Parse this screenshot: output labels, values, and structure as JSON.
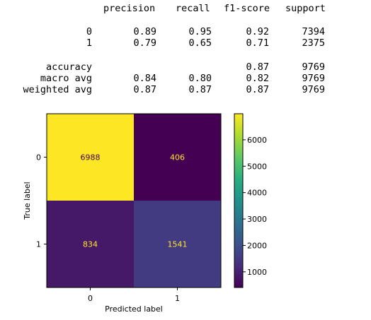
{
  "report": {
    "headers": [
      "precision",
      "recall",
      "f1-score",
      "support"
    ],
    "rows": [
      {
        "label": "0",
        "precision": "0.89",
        "recall": "0.95",
        "f1": "0.92",
        "support": "7394"
      },
      {
        "label": "1",
        "precision": "0.79",
        "recall": "0.65",
        "f1": "0.71",
        "support": "2375"
      },
      {
        "label": "accuracy",
        "precision": "",
        "recall": "",
        "f1": "0.87",
        "support": "9769"
      },
      {
        "label": "macro avg",
        "precision": "0.84",
        "recall": "0.80",
        "f1": "0.82",
        "support": "9769"
      },
      {
        "label": "weighted avg",
        "precision": "0.87",
        "recall": "0.87",
        "f1": "0.87",
        "support": "9769"
      }
    ]
  },
  "chart_data": {
    "type": "heatmap",
    "title": "",
    "xlabel": "Predicted label",
    "ylabel": "True label",
    "x_categories": [
      "0",
      "1"
    ],
    "y_categories": [
      "0",
      "1"
    ],
    "values": [
      [
        6988,
        406
      ],
      [
        834,
        1541
      ]
    ],
    "colormap": "viridis",
    "colorbar": {
      "ticks": [
        "1000",
        "2000",
        "3000",
        "4000",
        "5000",
        "6000"
      ],
      "range": [
        406,
        6988
      ]
    },
    "colors": {
      "cell_low": "#440154",
      "cell_high": "#fde725",
      "text_on_dark": "#fde725",
      "text_on_light": "#440154"
    }
  }
}
